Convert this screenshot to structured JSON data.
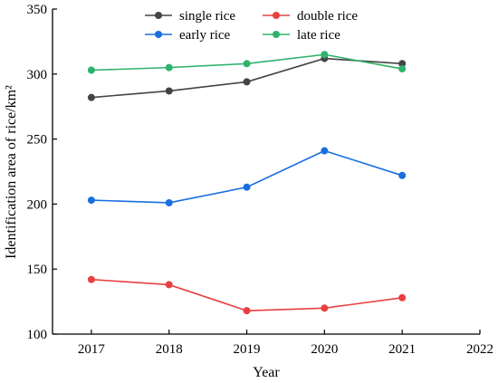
{
  "chart_data": {
    "type": "line",
    "x": [
      2017,
      2018,
      2019,
      2020,
      2021
    ],
    "xticks": [
      "2017",
      "2018",
      "2019",
      "2020",
      "2021",
      "2022"
    ],
    "xlim": [
      2016.5,
      2022
    ],
    "yticks": [
      "100",
      "150",
      "200",
      "250",
      "300",
      "350"
    ],
    "ylim": [
      100,
      350
    ],
    "xlabel": "Year",
    "ylabel": "Identification area of rice/km²",
    "legend_position": "top-center",
    "grid": false,
    "series": [
      {
        "name": "single rice",
        "color": "#444444",
        "values": [
          282,
          287,
          294,
          312,
          308
        ]
      },
      {
        "name": "double rice",
        "color": "#e84040",
        "values": [
          142,
          138,
          118,
          120,
          128
        ]
      },
      {
        "name": "early rice",
        "color": "#1a6ee0",
        "values": [
          203,
          201,
          213,
          241,
          222
        ]
      },
      {
        "name": "late rice",
        "color": "#2db36b",
        "values": [
          303,
          305,
          308,
          315,
          304
        ]
      }
    ]
  }
}
